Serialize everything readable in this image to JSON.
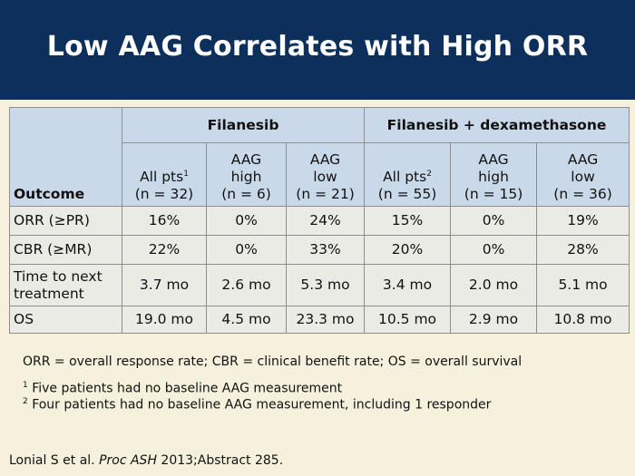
{
  "title": "Low AAG Correlates with High ORR",
  "table": {
    "outcome_header": "Outcome",
    "groups": [
      "Filanesib",
      "Filanesib + dexamethasone"
    ],
    "columns": [
      {
        "l1": "",
        "l2": "All pts",
        "sup": "1",
        "l3": "(n = 32)"
      },
      {
        "l1": "AAG",
        "l2": "high",
        "sup": "",
        "l3": "(n = 6)"
      },
      {
        "l1": "AAG",
        "l2": "low",
        "sup": "",
        "l3": "(n = 21)"
      },
      {
        "l1": "",
        "l2": "All pts",
        "sup": "2",
        "l3": "(n = 55)"
      },
      {
        "l1": "AAG",
        "l2": "high",
        "sup": "",
        "l3": "(n = 15)"
      },
      {
        "l1": "AAG",
        "l2": "low",
        "sup": "",
        "l3": "(n = 36)"
      }
    ],
    "rows": [
      {
        "label": "ORR (≥PR)",
        "values": [
          "16%",
          "0%",
          "24%",
          "15%",
          "0%",
          "19%"
        ]
      },
      {
        "label": "CBR (≥MR)",
        "values": [
          "22%",
          "0%",
          "33%",
          "20%",
          "0%",
          "28%"
        ]
      },
      {
        "label": "Time to next treatment",
        "values": [
          "3.7 mo",
          "2.6 mo",
          "5.3 mo",
          "3.4 mo",
          "2.0 mo",
          "5.1 mo"
        ]
      },
      {
        "label": "OS",
        "values": [
          "19.0 mo",
          "4.5 mo",
          "23.3 mo",
          "10.5 mo",
          "2.9 mo",
          "10.8 mo"
        ]
      }
    ]
  },
  "abbreviations": "ORR = overall response rate; CBR = clinical benefit rate; OS = overall survival",
  "footnotes": [
    {
      "mark": "1",
      "text": "Five patients had no baseline AAG measurement"
    },
    {
      "mark": "2",
      "text": "Four patients had no baseline AAG measurement, including 1 responder"
    }
  ],
  "citation": {
    "authors": "Lonial S et al.",
    "journal": "Proc ASH",
    "rest": "2013;Abstract 285."
  }
}
